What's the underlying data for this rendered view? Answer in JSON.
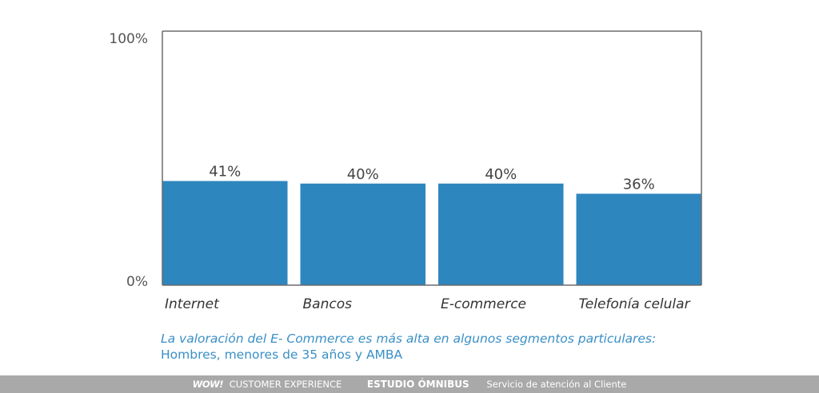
{
  "chart_data": {
    "type": "bar",
    "categories": [
      "Internet",
      "Bancos",
      "E-commerce",
      "Telefonía celular"
    ],
    "values": [
      41,
      40,
      40,
      36
    ],
    "value_labels": [
      "41%",
      "40%",
      "40%",
      "36%"
    ],
    "ylim": [
      0,
      100
    ],
    "yticks": [
      "0%",
      "100%"
    ],
    "grid": false,
    "bar_color": "#2e86bf",
    "axis_color": "#6b6b6b"
  },
  "caption": {
    "line1": "La valoración del E- Commerce es más alta en algunos segmentos particulares:",
    "line2": "Hombres, menores de 35 años y AMBA",
    "color": "#3a8fc6"
  },
  "footer": {
    "logo": "WOW!",
    "brand": "CUSTOMER EXPERIENCE",
    "study": "ESTUDIO ÓMNIBUS",
    "service": "Servicio de atención al Cliente",
    "background": "#a9a9a9"
  }
}
